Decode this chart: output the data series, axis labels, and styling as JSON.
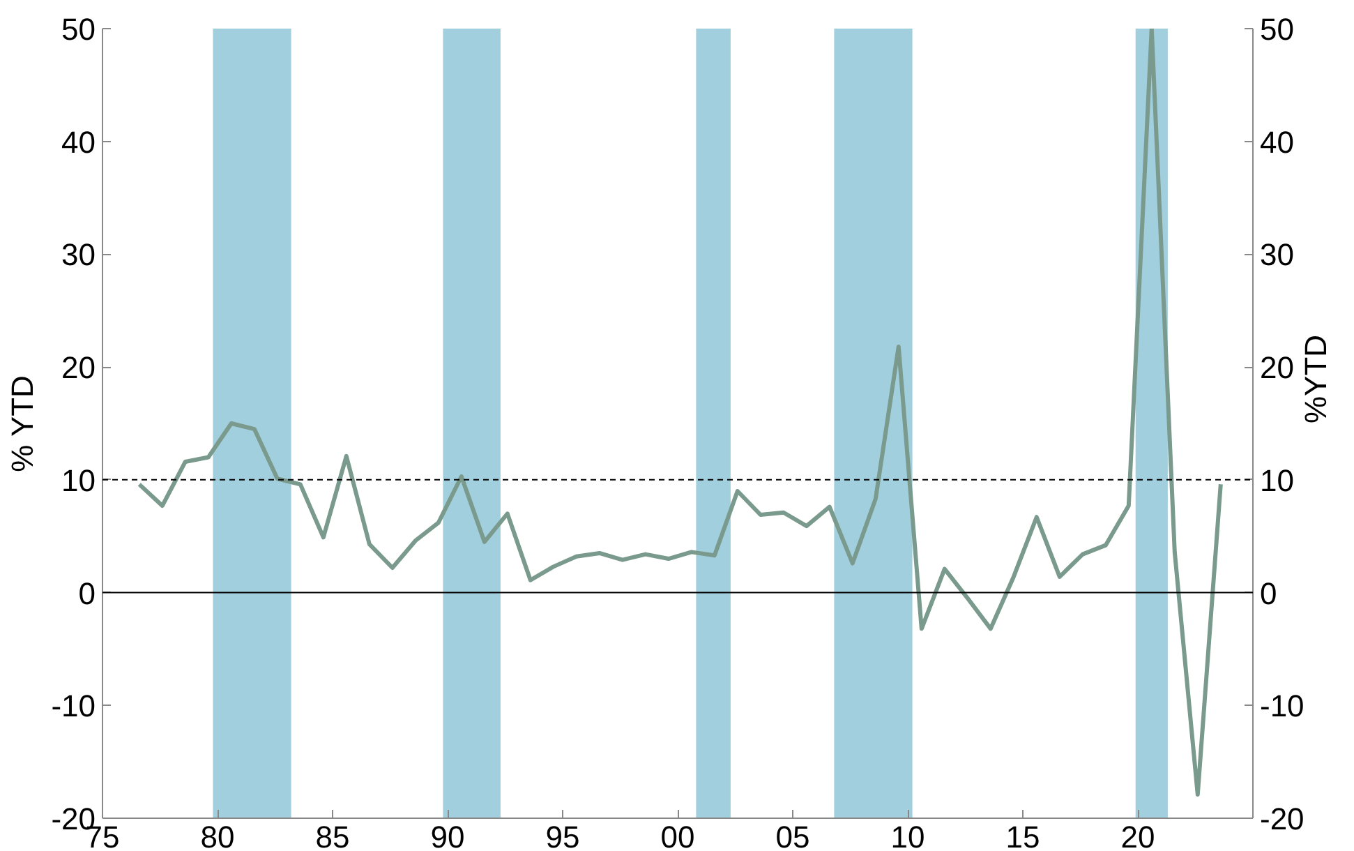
{
  "chart_data": {
    "type": "line",
    "ylabel": "% YTD",
    "y2label": "%YTD",
    "x": [
      1976.6,
      1977.6,
      1978.6,
      1979.6,
      1980.6,
      1981.6,
      1982.6,
      1983.6,
      1984.6,
      1985.6,
      1986.6,
      1987.6,
      1988.6,
      1989.6,
      1990.6,
      1991.6,
      1992.6,
      1993.6,
      1994.6,
      1995.6,
      1996.6,
      1997.6,
      1998.6,
      1999.6,
      2000.6,
      2001.6,
      2002.6,
      2003.6,
      2004.6,
      2005.6,
      2006.6,
      2007.6,
      2008.6,
      2009.6,
      2010.6,
      2011.6,
      2012.6,
      2013.6,
      2014.6,
      2015.6,
      2016.6,
      2017.6,
      2018.6,
      2019.6,
      2020.6,
      2021.6,
      2022.6,
      2023.6
    ],
    "series": [
      {
        "color": "#7a9a8e",
        "values": [
          9.6,
          7.7,
          11.6,
          12.0,
          15.0,
          14.5,
          10.1,
          9.6,
          4.9,
          12.1,
          4.3,
          2.2,
          4.6,
          6.2,
          10.3,
          4.5,
          7.0,
          1.1,
          2.3,
          3.2,
          3.5,
          2.9,
          3.4,
          3.0,
          3.6,
          3.3,
          9.0,
          6.9,
          7.1,
          5.9,
          7.6,
          2.6,
          8.3,
          21.8,
          -3.2,
          2.1,
          -0.5,
          -3.2,
          1.4,
          6.7,
          1.4,
          3.4,
          4.2,
          7.7,
          50,
          3.6,
          -17.9,
          9.6
        ]
      }
    ],
    "xlim": [
      1975,
      2025
    ],
    "xticks": [
      {
        "value": 1975,
        "label": "75"
      },
      {
        "value": 1980,
        "label": "80"
      },
      {
        "value": 1985,
        "label": "85"
      },
      {
        "value": 1990,
        "label": "90"
      },
      {
        "value": 1995,
        "label": "95"
      },
      {
        "value": 2000,
        "label": "00"
      },
      {
        "value": 2005,
        "label": "05"
      },
      {
        "value": 2010,
        "label": "10"
      },
      {
        "value": 2015,
        "label": "15"
      },
      {
        "value": 2020,
        "label": "20"
      }
    ],
    "ylim": [
      -20,
      50
    ],
    "yticks": [
      -20,
      -10,
      0,
      10,
      20,
      30,
      40,
      50
    ],
    "y2lim": [
      -20,
      50
    ],
    "y2ticks": [
      -20,
      -10,
      0,
      10,
      20,
      30,
      40,
      50
    ],
    "ref_lines": [
      {
        "axis": "y",
        "value": 10,
        "color": "#000000",
        "line_style": "dashed"
      },
      {
        "axis": "y",
        "value": 0,
        "color": "#000000",
        "line_style": "solid"
      }
    ],
    "bands": [
      {
        "axis": "x",
        "from": 1979.8,
        "to": 1983.2,
        "color": "#a2cfdd"
      },
      {
        "axis": "x",
        "from": 1989.8,
        "to": 1992.3,
        "color": "#a2cfdd"
      },
      {
        "axis": "x",
        "from": 2000.8,
        "to": 2002.3,
        "color": "#a2cfdd"
      },
      {
        "axis": "x",
        "from": 2006.8,
        "to": 2010.2,
        "color": "#a2cfdd"
      },
      {
        "axis": "x",
        "from": 2019.9,
        "to": 2021.3,
        "color": "#a2cfdd"
      }
    ],
    "grid": false
  }
}
